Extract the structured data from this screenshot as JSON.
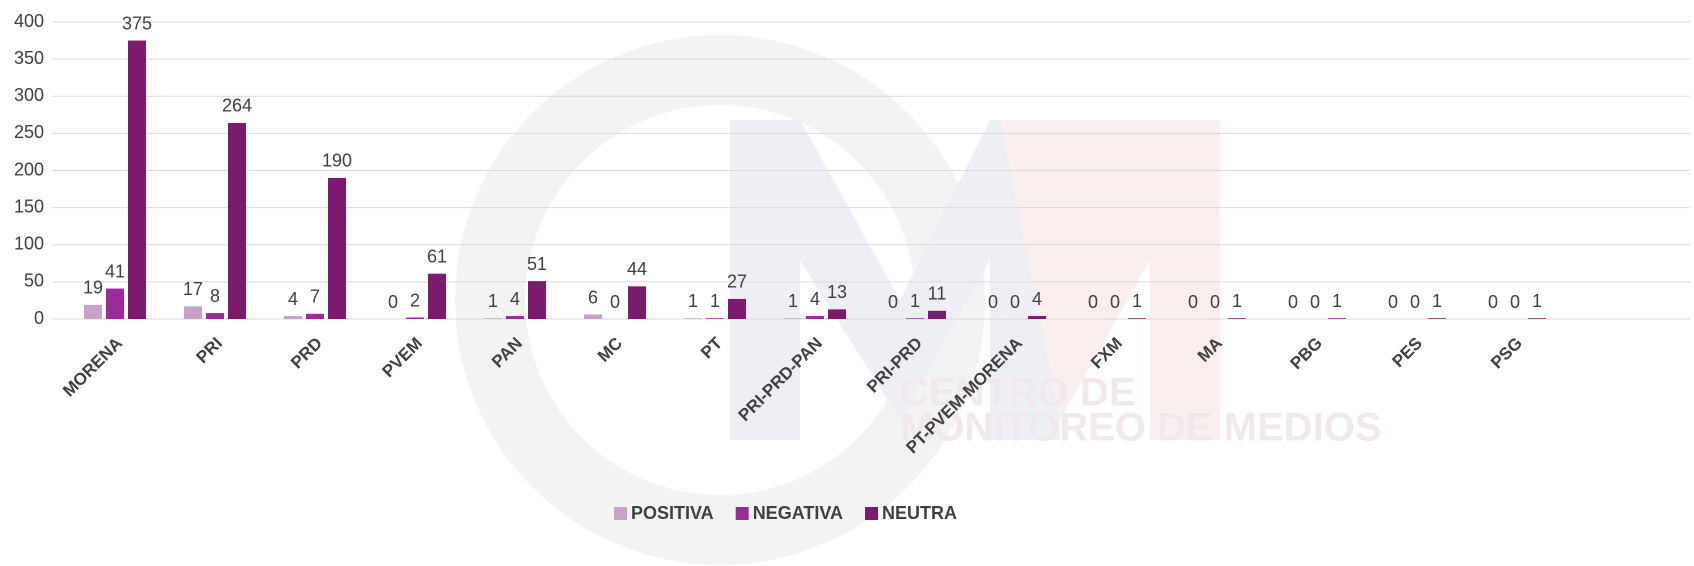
{
  "chart_data": {
    "type": "bar",
    "watermark": [
      "CENTRO DE",
      "MONITOREO DE MEDIOS"
    ],
    "categories": [
      "MORENA",
      "PRI",
      "PRD",
      "PVEM",
      "PAN",
      "MC",
      "PT",
      "PRI-PRD-PAN",
      "PRI-PRD",
      "PT-PVEM-MORENA",
      "FXM",
      "MA",
      "PBG",
      "PES",
      "PSG"
    ],
    "series": [
      {
        "name": "POSITIVA",
        "color": "#c9a0c8",
        "values": [
          19,
          17,
          4,
          0,
          1,
          6,
          1,
          1,
          0,
          0,
          0,
          0,
          0,
          0,
          0
        ]
      },
      {
        "name": "NEGATIVA",
        "color": "#9b2a9b",
        "values": [
          41,
          8,
          7,
          2,
          4,
          0,
          1,
          4,
          1,
          0,
          0,
          0,
          0,
          0,
          0
        ]
      },
      {
        "name": "NEUTRA",
        "color": "#7b1a6e",
        "values": [
          375,
          264,
          190,
          61,
          51,
          44,
          27,
          13,
          11,
          4,
          1,
          1,
          1,
          1,
          1
        ]
      }
    ],
    "ylim": [
      0,
      400
    ],
    "yticks": [
      0,
      50,
      100,
      150,
      200,
      250,
      300,
      350,
      400
    ],
    "grid": true,
    "legend": "bottom"
  }
}
